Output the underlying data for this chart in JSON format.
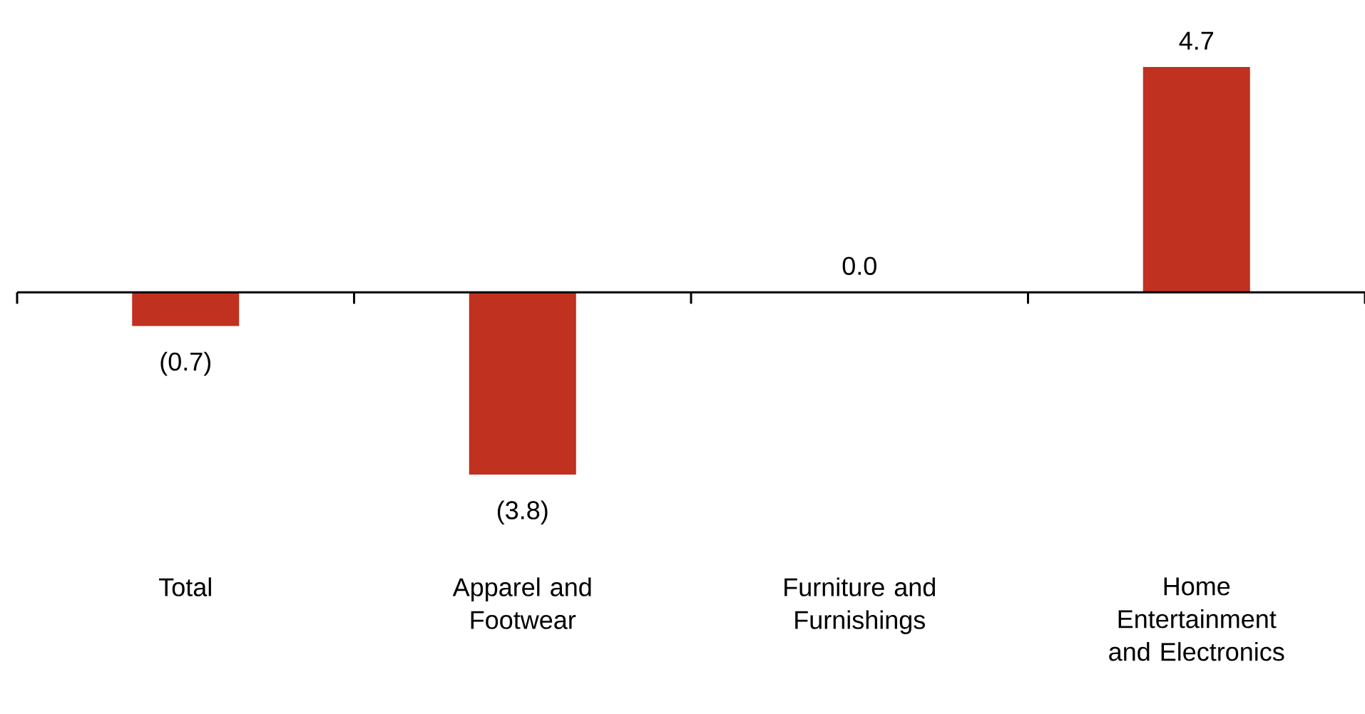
{
  "chart_data": {
    "type": "bar",
    "categories": [
      "Total",
      "Apparel and Footwear",
      "Furniture and Furnishings",
      "Home Entertainment and Electronics"
    ],
    "values": [
      -0.7,
      -3.8,
      0.0,
      4.7
    ],
    "value_labels": [
      "(0.7)",
      "(3.8)",
      "0.0",
      "4.7"
    ],
    "color": "#c0311f"
  }
}
